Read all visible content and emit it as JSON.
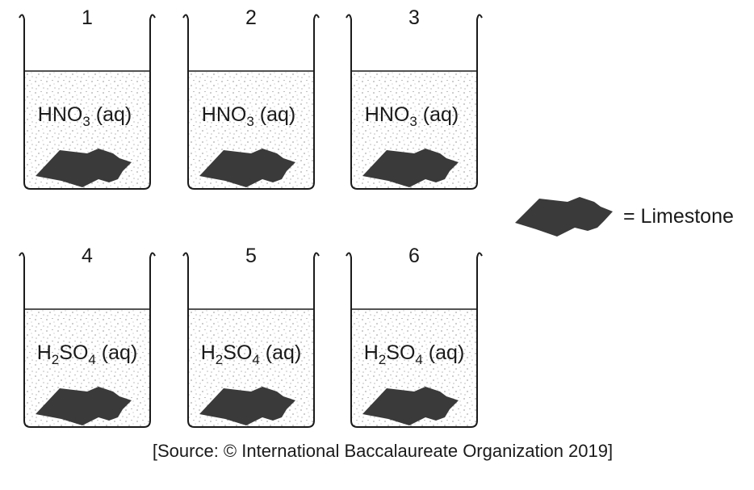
{
  "beakers": [
    {
      "number": "1",
      "solution": {
        "pre": "HNO",
        "sub": "3",
        "post": " (aq)"
      }
    },
    {
      "number": "2",
      "solution": {
        "pre": "HNO",
        "sub": "3",
        "post": " (aq)"
      }
    },
    {
      "number": "3",
      "solution": {
        "pre": "HNO",
        "sub": "3",
        "post": " (aq)"
      }
    },
    {
      "number": "4",
      "solution": {
        "pre": "H",
        "sub": "2",
        "mid": "SO",
        "sub2": "4",
        "post": " (aq)"
      }
    },
    {
      "number": "5",
      "solution": {
        "pre": "H",
        "sub": "2",
        "mid": "SO",
        "sub2": "4",
        "post": " (aq)"
      }
    },
    {
      "number": "6",
      "solution": {
        "pre": "H",
        "sub": "2",
        "mid": "SO",
        "sub2": "4",
        "post": " (aq)"
      }
    }
  ],
  "legend": {
    "label": "= Limestone"
  },
  "source": "[Source: © International Baccalaureate Organization 2019]",
  "colors": {
    "rock": "#3a3a3a",
    "outline": "#1a1a1a",
    "dots": "#555555"
  }
}
